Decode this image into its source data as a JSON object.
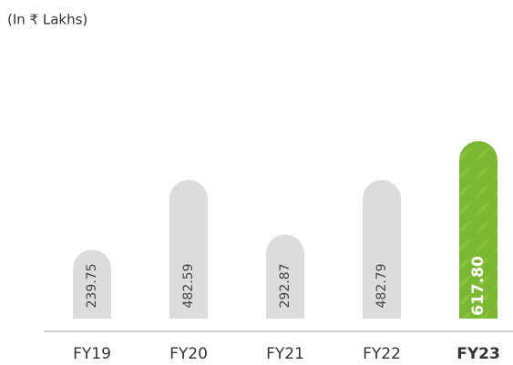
{
  "chart_data": {
    "type": "bar",
    "subtitle": "(In ₹ Lakhs)",
    "categories": [
      "FY19",
      "FY20",
      "FY21",
      "FY22",
      "FY23"
    ],
    "values": [
      239.75,
      482.59,
      292.87,
      482.79,
      617.8
    ],
    "value_labels": [
      "239.75",
      "482.59",
      "292.87",
      "482.79",
      "617.80"
    ],
    "colors": [
      "#dcdcdc",
      "#dcdcdc",
      "#dcdcdc",
      "#dcdcdc",
      "#7ab833"
    ],
    "ylim": [
      0,
      640
    ]
  }
}
